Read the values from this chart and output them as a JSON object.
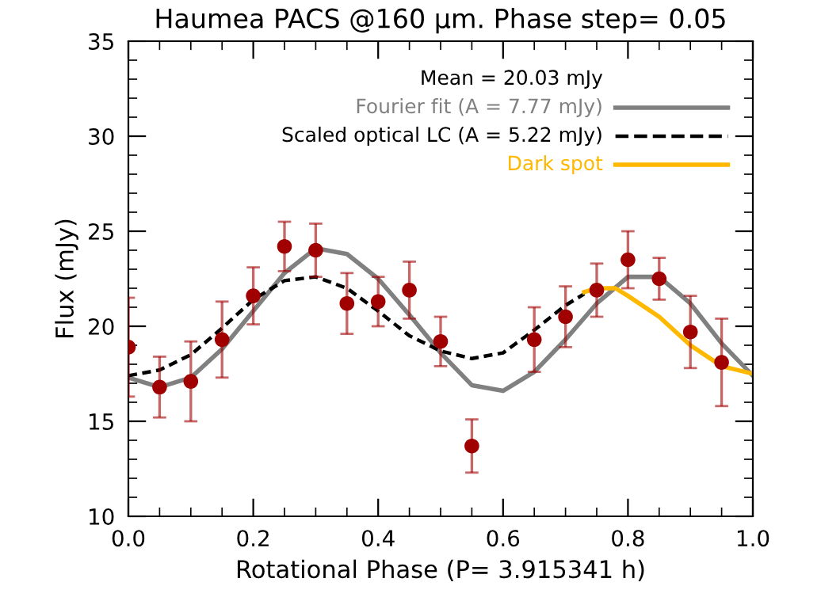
{
  "chart_data": {
    "type": "scatter",
    "title": "Haumea PACS @160 μm. Phase step= 0.05",
    "xlabel": "Rotational Phase (P= 3.915341 h)",
    "ylabel": "Flux (mJy)",
    "xlim": [
      0,
      1
    ],
    "xticks": [
      {
        "value": 0,
        "label": "0.0"
      },
      {
        "value": 0.2,
        "label": "0.2"
      },
      {
        "value": 0.4,
        "label": "0.4"
      },
      {
        "value": 0.6,
        "label": "0.6"
      },
      {
        "value": 0.8,
        "label": "0.8"
      },
      {
        "value": 1,
        "label": "1.0"
      }
    ],
    "ylim": [
      10,
      35
    ],
    "yticks": [
      10,
      15,
      20,
      25,
      30,
      35
    ],
    "grid": false,
    "legend": "top right",
    "annotations": [
      "Mean = 20.03 mJy"
    ],
    "series": [
      {
        "type": "line",
        "name": "Fourier fit (A = 7.77 mJy)",
        "color": "#808080",
        "line_style": "solid",
        "x": [
          0,
          0.05,
          0.1,
          0.15,
          0.2,
          0.25,
          0.3,
          0.35,
          0.4,
          0.45,
          0.5,
          0.55,
          0.6,
          0.65,
          0.7,
          0.75,
          0.8,
          0.85,
          0.9,
          0.95,
          1.0
        ],
        "values": [
          17.3,
          16.8,
          17.3,
          18.8,
          20.8,
          22.8,
          24.1,
          23.8,
          22.5,
          20.6,
          18.6,
          16.9,
          16.6,
          17.6,
          19.3,
          21.2,
          22.6,
          22.6,
          21.2,
          19.1,
          17.4
        ]
      },
      {
        "type": "line",
        "name": "Scaled optical LC (A = 5.22 mJy)",
        "color": "#000000",
        "line_style": "dashed",
        "x": [
          0,
          0.05,
          0.1,
          0.15,
          0.2,
          0.25,
          0.3,
          0.35,
          0.4,
          0.45,
          0.5,
          0.55,
          0.6,
          0.65,
          0.7,
          0.73
        ],
        "values": [
          17.4,
          17.7,
          18.5,
          19.9,
          21.4,
          22.4,
          22.6,
          22.0,
          20.8,
          19.5,
          18.7,
          18.3,
          18.6,
          19.8,
          21.1,
          21.7
        ]
      },
      {
        "type": "line",
        "name": "Dark spot",
        "color": "#ffb800",
        "line_style": "solid",
        "x": [
          0.73,
          0.75,
          0.78,
          0.8,
          0.85,
          0.9,
          0.95,
          1.0
        ],
        "values": [
          21.8,
          22.0,
          22.0,
          21.6,
          20.5,
          19.0,
          17.9,
          17.5
        ]
      },
      {
        "color": "#a00000",
        "marker": "circle",
        "x": [
          0,
          0.05,
          0.1,
          0.15,
          0.2,
          0.25,
          0.3,
          0.35,
          0.4,
          0.45,
          0.5,
          0.55,
          0.65,
          0.7,
          0.75,
          0.8,
          0.85,
          0.9,
          0.95
        ],
        "values": [
          18.9,
          16.8,
          17.1,
          19.3,
          21.6,
          24.2,
          24.0,
          21.2,
          21.3,
          21.9,
          19.2,
          13.7,
          19.3,
          20.5,
          21.9,
          23.5,
          22.5,
          19.7,
          18.1
        ],
        "errors": [
          2.6,
          1.6,
          2.1,
          2.0,
          1.5,
          1.3,
          1.4,
          1.6,
          1.3,
          1.5,
          1.3,
          1.4,
          1.7,
          1.6,
          1.4,
          1.5,
          1.1,
          1.9,
          2.3
        ]
      }
    ]
  }
}
